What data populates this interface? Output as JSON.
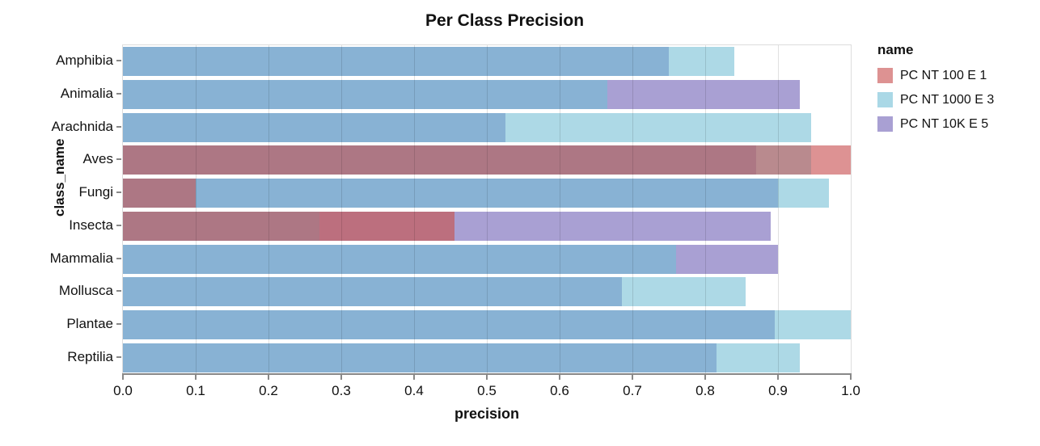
{
  "chart_data": {
    "type": "bar",
    "orientation": "horizontal",
    "layered_translucent_bars": true,
    "title": "Per Class Precision",
    "xlabel": "precision",
    "ylabel": "class_name",
    "xlim": [
      0.0,
      1.0
    ],
    "x_ticks": [
      "0.0",
      "0.1",
      "0.2",
      "0.3",
      "0.4",
      "0.5",
      "0.6",
      "0.7",
      "0.8",
      "0.9",
      "1.0"
    ],
    "grid": true,
    "categories": [
      "Amphibia",
      "Animalia",
      "Arachnida",
      "Aves",
      "Fungi",
      "Insecta",
      "Mammalia",
      "Mollusca",
      "Plantae",
      "Reptilia"
    ],
    "series": [
      {
        "name": "PC NT 100 E 1",
        "key": "r",
        "color": "#dd9292",
        "values": [
          null,
          null,
          null,
          1.0,
          0.1,
          0.455,
          null,
          null,
          null,
          null
        ]
      },
      {
        "name": "PC NT 1000 E 3",
        "key": "c",
        "color": "#aad8e6",
        "values": [
          0.84,
          0.665,
          0.945,
          0.945,
          0.97,
          0.27,
          0.76,
          0.855,
          1.0,
          0.93
        ]
      },
      {
        "name": "PC NT 10K E 5",
        "key": "p",
        "color": "#a9a0d3",
        "values": [
          0.75,
          0.93,
          0.525,
          0.87,
          0.9,
          0.89,
          0.9,
          0.685,
          0.895,
          0.815
        ]
      }
    ],
    "legend": {
      "title": "name",
      "position": "right",
      "entries": [
        {
          "label": "PC NT 100 E 1",
          "color": "#dd9292"
        },
        {
          "label": "PC NT 1000 E 3",
          "color": "#aad8e6"
        },
        {
          "label": "PC NT 10K E 5",
          "color": "#a9a0d3"
        }
      ]
    },
    "overlap_colors": {
      "r": "#dd9293",
      "c": "#add9e6",
      "p": "#a9a0d3",
      "rc": "#b98a8e",
      "rp": "#bc6f7e",
      "cp": "#88b2d4",
      "rcp": "#ad7784"
    },
    "axis_colors": {
      "gridline": "rgba(0,0,0,0.12)",
      "frame": "#dddddd",
      "axis_line": "#888888",
      "text": "#111111"
    }
  }
}
